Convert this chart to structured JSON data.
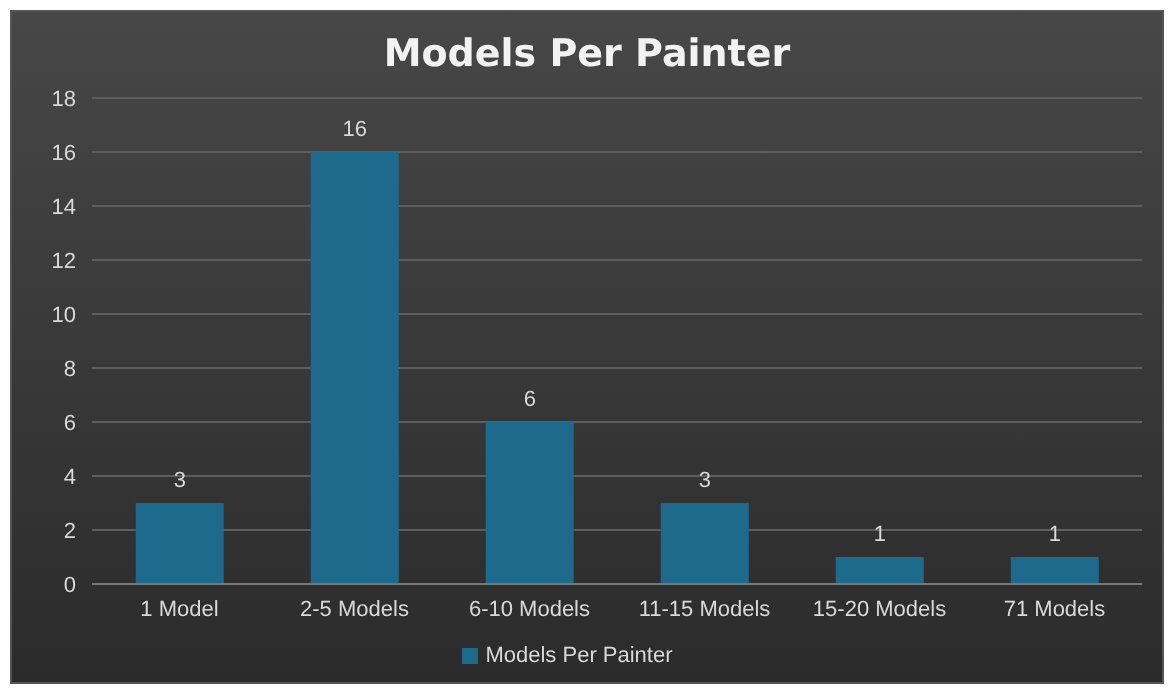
{
  "chart_data": {
    "type": "bar",
    "title": "Models Per Painter",
    "categories": [
      "1 Model",
      "2-5 Models",
      "6-10 Models",
      "11-15 Models",
      "15-20 Models",
      "71 Models"
    ],
    "series": [
      {
        "name": "Models Per Painter",
        "color": "#1e6a8d",
        "values": [
          3,
          16,
          6,
          3,
          1,
          1
        ]
      }
    ],
    "ylim": [
      0,
      18
    ],
    "yticks": [
      0,
      2,
      4,
      6,
      8,
      10,
      12,
      14,
      16,
      18
    ],
    "grid": "y",
    "legend": "bottom",
    "data_labels": true
  }
}
